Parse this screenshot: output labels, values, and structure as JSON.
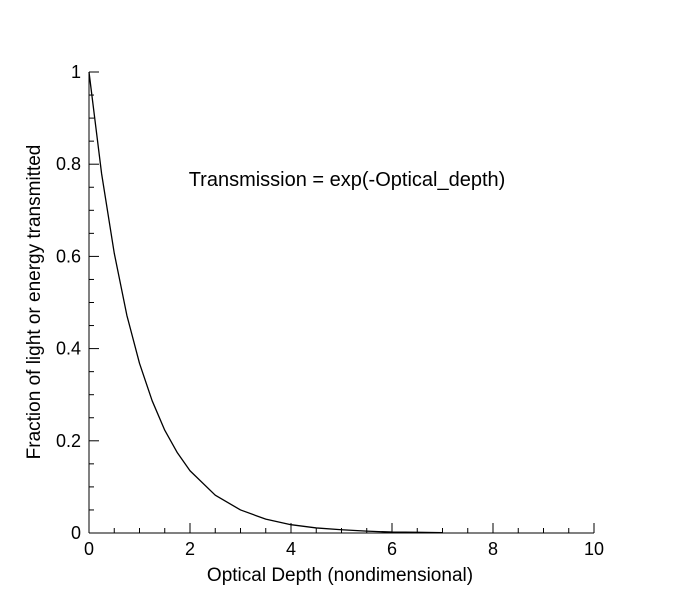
{
  "chart_data": {
    "type": "line",
    "title": "",
    "xlabel": "Optical Depth (nondimensional)",
    "ylabel": "Fraction of light or energy transmitted",
    "xlim": [
      0,
      10
    ],
    "ylim": [
      0,
      1
    ],
    "x_ticks": [
      0,
      2,
      4,
      6,
      8,
      10
    ],
    "x_tick_labels": [
      "0",
      "2",
      "4",
      "6",
      "8",
      "10"
    ],
    "y_ticks": [
      0,
      0.2,
      0.4,
      0.6,
      0.8,
      1
    ],
    "y_tick_labels": [
      "0",
      "0.2",
      "0.4",
      "0.6",
      "0.8",
      "1"
    ],
    "grid": false,
    "legend": "none",
    "annotation": "Transmission = exp(-Optical_depth)",
    "series": [
      {
        "x": [
          0,
          0.25,
          0.5,
          0.75,
          1,
          1.25,
          1.5,
          1.75,
          2,
          2.5,
          3,
          3.5,
          4,
          4.5,
          5,
          5.5,
          6,
          6.5,
          7
        ],
        "y": [
          1.0,
          0.779,
          0.607,
          0.472,
          0.368,
          0.287,
          0.223,
          0.174,
          0.135,
          0.082,
          0.05,
          0.03,
          0.018,
          0.011,
          0.007,
          0.004,
          0.002,
          0.0015,
          0.0009
        ]
      }
    ]
  }
}
